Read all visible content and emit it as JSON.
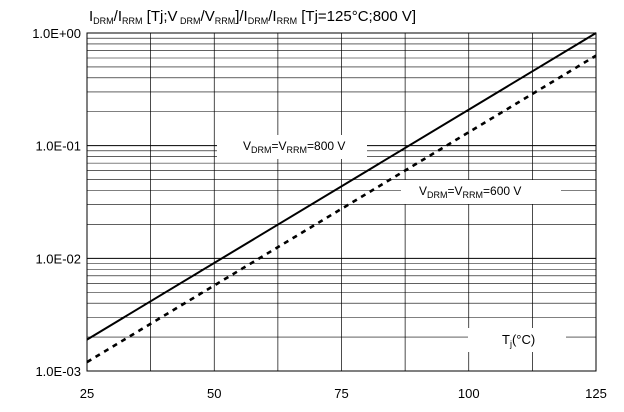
{
  "chart_data": {
    "type": "line",
    "title": {
      "parts": [
        {
          "t": "I"
        },
        {
          "t": "DRM",
          "sub": true
        },
        {
          "t": "/I"
        },
        {
          "t": "RRM",
          "sub": true
        },
        {
          "t": " [Tj;V"
        },
        {
          "t": " DRM",
          "sub": true
        },
        {
          "t": "/V"
        },
        {
          "t": "RRM",
          "sub": true
        },
        {
          "t": "]/I"
        },
        {
          "t": "DRM",
          "sub": true
        },
        {
          "t": "/I"
        },
        {
          "t": "RRM",
          "sub": true
        },
        {
          "t": " [Tj=125°C;800 V]"
        }
      ]
    },
    "x_axis": {
      "scale": "linear",
      "range": [
        25,
        125
      ],
      "ticks": [
        25,
        50,
        75,
        100,
        125
      ],
      "tick_labels": [
        "25",
        "50",
        "75",
        "100",
        "125"
      ],
      "label_parts": [
        {
          "t": "T"
        },
        {
          "t": "j",
          "sub": true
        },
        {
          "t": "(°C)"
        }
      ]
    },
    "y_axis": {
      "scale": "log",
      "range": [
        0.001,
        1
      ],
      "ticks": [
        0.001,
        0.01,
        0.1,
        1
      ],
      "tick_labels": [
        "1.0E-03",
        "1.0E-02",
        "1.0E-01",
        "1.0E+00"
      ]
    },
    "grid": true,
    "series": [
      {
        "name_parts": [
          {
            "t": "V"
          },
          {
            "t": "DRM",
            "sub": true
          },
          {
            "t": "=V"
          },
          {
            "t": "RRM",
            "sub": true
          },
          {
            "t": "=800 V"
          }
        ],
        "style": "solid",
        "x": [
          25,
          125
        ],
        "y": [
          0.0019,
          1.0
        ]
      },
      {
        "name_parts": [
          {
            "t": "V"
          },
          {
            "t": "DRM",
            "sub": true
          },
          {
            "t": "=V"
          },
          {
            "t": "RRM",
            "sub": true
          },
          {
            "t": "=600 V"
          }
        ],
        "style": "dashed",
        "x": [
          25,
          125
        ],
        "y": [
          0.0012,
          0.63
        ]
      }
    ]
  }
}
